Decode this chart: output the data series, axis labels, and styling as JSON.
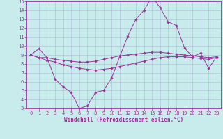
{
  "xlabel": "Windchill (Refroidissement éolien,°C)",
  "background_color": "#c8ecec",
  "grid_color": "#b0b8d8",
  "line_color": "#993399",
  "spine_color": "#993399",
  "xlim": [
    -0.5,
    23.5
  ],
  "ylim": [
    3,
    15
  ],
  "xticks": [
    0,
    1,
    2,
    3,
    4,
    5,
    6,
    7,
    8,
    9,
    10,
    11,
    12,
    13,
    14,
    15,
    16,
    17,
    18,
    19,
    20,
    21,
    22,
    23
  ],
  "yticks": [
    3,
    4,
    5,
    6,
    7,
    8,
    9,
    10,
    11,
    12,
    13,
    14,
    15
  ],
  "line1_x": [
    0,
    1,
    2,
    3,
    4,
    5,
    6,
    7,
    8,
    9,
    10,
    11,
    12,
    13,
    14,
    15,
    16,
    17,
    18,
    19,
    20,
    21,
    22,
    23
  ],
  "line1_y": [
    9.0,
    9.7,
    8.7,
    6.3,
    5.4,
    4.8,
    3.0,
    3.3,
    4.8,
    5.0,
    6.4,
    8.8,
    11.1,
    13.0,
    14.0,
    15.5,
    14.3,
    12.7,
    12.3,
    9.8,
    8.8,
    9.2,
    7.5,
    8.8
  ],
  "line2_x": [
    0,
    1,
    2,
    3,
    4,
    5,
    6,
    7,
    8,
    9,
    10,
    11,
    12,
    13,
    14,
    15,
    16,
    17,
    18,
    19,
    20,
    21,
    22,
    23
  ],
  "line2_y": [
    9.0,
    8.7,
    8.7,
    8.5,
    8.4,
    8.3,
    8.2,
    8.2,
    8.3,
    8.5,
    8.7,
    8.9,
    9.0,
    9.1,
    9.2,
    9.3,
    9.3,
    9.2,
    9.1,
    9.0,
    8.9,
    8.8,
    8.7,
    8.8
  ],
  "line3_x": [
    0,
    1,
    2,
    3,
    4,
    5,
    6,
    7,
    8,
    9,
    10,
    11,
    12,
    13,
    14,
    15,
    16,
    17,
    18,
    19,
    20,
    21,
    22,
    23
  ],
  "line3_y": [
    9.0,
    8.7,
    8.4,
    8.2,
    7.9,
    7.7,
    7.5,
    7.4,
    7.3,
    7.4,
    7.5,
    7.7,
    7.9,
    8.1,
    8.3,
    8.5,
    8.7,
    8.8,
    8.8,
    8.8,
    8.7,
    8.6,
    8.5,
    8.7
  ],
  "xlabel_fontsize": 5.5,
  "tick_fontsize": 5.0,
  "lw": 0.7,
  "ms": 1.8
}
